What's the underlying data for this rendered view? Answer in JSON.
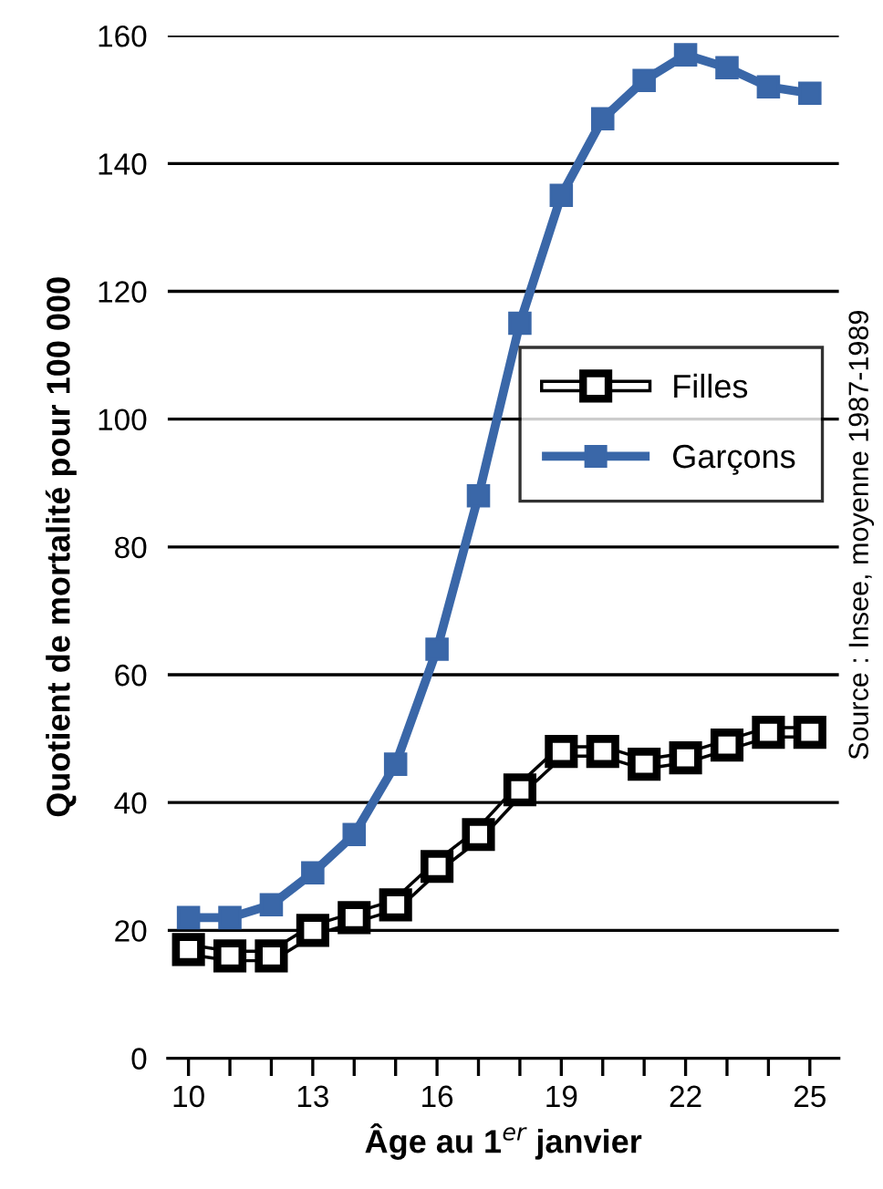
{
  "chart_data": {
    "type": "line",
    "xlabel": "Âge au 1$^{er}$ janvier",
    "ylabel": "Quotient de mortalité pour 100 000",
    "x": [
      10,
      11,
      12,
      13,
      14,
      15,
      16,
      17,
      18,
      19,
      20,
      21,
      22,
      23,
      24,
      25
    ],
    "series": [
      {
        "name": "Filles",
        "color": "#ffffff",
        "values": [
          17,
          16,
          16,
          20,
          22,
          24,
          30,
          35,
          42,
          48,
          48,
          46,
          47,
          49,
          51,
          51
        ]
      },
      {
        "name": "Garçons",
        "color": "#3a67a8",
        "values": [
          22,
          22,
          24,
          29,
          35,
          46,
          64,
          88,
          115,
          135,
          147,
          153,
          157,
          155,
          152,
          151
        ]
      }
    ],
    "xlim": [
      9.5,
      25.7
    ],
    "ylim": [
      0,
      160
    ],
    "xticks": [
      10,
      {
        "value": 11,
        "label": null
      },
      {
        "value": 12,
        "label": null
      },
      13,
      {
        "value": 14,
        "label": null
      },
      {
        "value": 15,
        "label": null
      },
      16,
      {
        "value": 17,
        "label": null
      },
      {
        "value": 18,
        "label": null
      },
      19,
      {
        "value": 20,
        "label": null
      },
      {
        "value": 21,
        "label": null
      },
      22,
      {
        "value": 23,
        "label": null
      },
      {
        "value": 24,
        "label": null
      },
      25
    ],
    "yticks": [
      0,
      20,
      40,
      60,
      80,
      100,
      120,
      140,
      160
    ],
    "grid": "y",
    "legend": "right",
    "marker": "square",
    "line_style": "solid",
    "annotations": [
      "Source : Insee, moyenne 1987-1989"
    ]
  }
}
